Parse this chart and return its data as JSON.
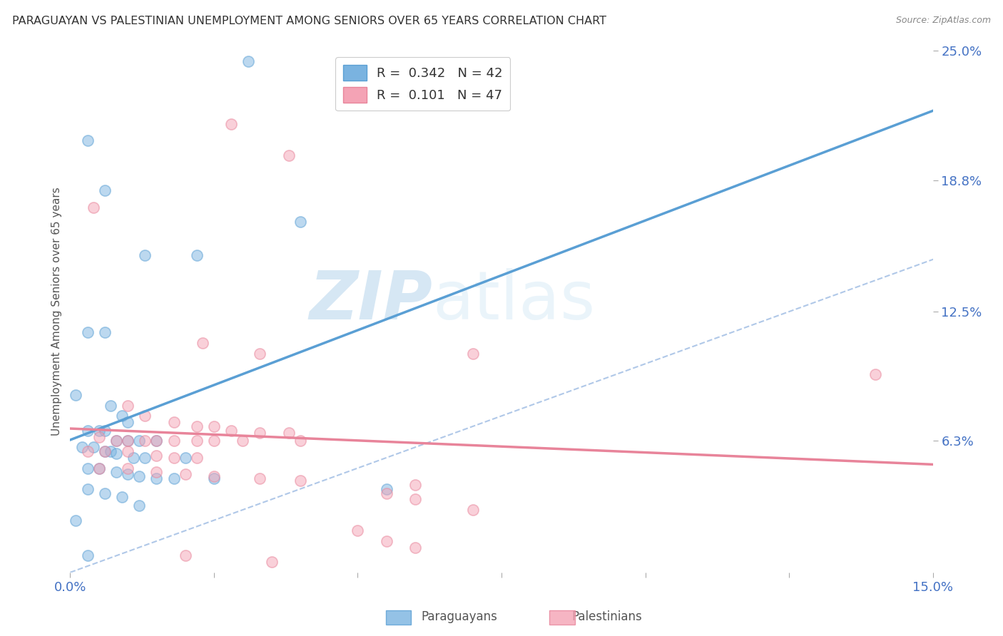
{
  "title": "PARAGUAYAN VS PALESTINIAN UNEMPLOYMENT AMONG SENIORS OVER 65 YEARS CORRELATION CHART",
  "source": "Source: ZipAtlas.com",
  "ylabel": "Unemployment Among Seniors over 65 years",
  "y_tick_labels_right": [
    "25.0%",
    "18.8%",
    "12.5%",
    "6.3%"
  ],
  "y_tick_values_right": [
    0.25,
    0.188,
    0.125,
    0.063
  ],
  "xlim": [
    0.0,
    0.15
  ],
  "ylim": [
    0.0,
    0.25
  ],
  "legend_label_par": "R =  0.342   N = 42",
  "legend_label_pal": "R =  0.101   N = 47",
  "watermark_zip": "ZIP",
  "watermark_atlas": "atlas",
  "paraguayan_color": "#7ab3e0",
  "paraguayan_color_dark": "#5a9fd4",
  "palestinian_color": "#f4a3b5",
  "palestinian_color_dark": "#e8849a",
  "trendline_paraguayan_color": "#5a9fd4",
  "trendline_palestinian_color": "#e8849a",
  "trendline_diagonal_color": "#b0c8e8",
  "paraguayan_points": [
    [
      0.003,
      0.207
    ],
    [
      0.022,
      0.152
    ],
    [
      0.031,
      0.245
    ],
    [
      0.006,
      0.183
    ],
    [
      0.013,
      0.152
    ],
    [
      0.04,
      0.168
    ],
    [
      0.003,
      0.115
    ],
    [
      0.006,
      0.115
    ],
    [
      0.001,
      0.085
    ],
    [
      0.007,
      0.08
    ],
    [
      0.009,
      0.075
    ],
    [
      0.01,
      0.072
    ],
    [
      0.003,
      0.068
    ],
    [
      0.005,
      0.068
    ],
    [
      0.006,
      0.068
    ],
    [
      0.008,
      0.063
    ],
    [
      0.01,
      0.063
    ],
    [
      0.012,
      0.063
    ],
    [
      0.015,
      0.063
    ],
    [
      0.002,
      0.06
    ],
    [
      0.004,
      0.06
    ],
    [
      0.006,
      0.058
    ],
    [
      0.007,
      0.058
    ],
    [
      0.008,
      0.057
    ],
    [
      0.011,
      0.055
    ],
    [
      0.013,
      0.055
    ],
    [
      0.02,
      0.055
    ],
    [
      0.003,
      0.05
    ],
    [
      0.005,
      0.05
    ],
    [
      0.008,
      0.048
    ],
    [
      0.01,
      0.047
    ],
    [
      0.012,
      0.046
    ],
    [
      0.015,
      0.045
    ],
    [
      0.018,
      0.045
    ],
    [
      0.025,
      0.045
    ],
    [
      0.003,
      0.04
    ],
    [
      0.006,
      0.038
    ],
    [
      0.009,
      0.036
    ],
    [
      0.012,
      0.032
    ],
    [
      0.001,
      0.025
    ],
    [
      0.055,
      0.04
    ],
    [
      0.003,
      0.008
    ]
  ],
  "palestinian_points": [
    [
      0.028,
      0.215
    ],
    [
      0.038,
      0.2
    ],
    [
      0.004,
      0.175
    ],
    [
      0.023,
      0.11
    ],
    [
      0.033,
      0.105
    ],
    [
      0.07,
      0.105
    ],
    [
      0.01,
      0.08
    ],
    [
      0.013,
      0.075
    ],
    [
      0.018,
      0.072
    ],
    [
      0.022,
      0.07
    ],
    [
      0.025,
      0.07
    ],
    [
      0.028,
      0.068
    ],
    [
      0.033,
      0.067
    ],
    [
      0.038,
      0.067
    ],
    [
      0.005,
      0.065
    ],
    [
      0.008,
      0.063
    ],
    [
      0.01,
      0.063
    ],
    [
      0.013,
      0.063
    ],
    [
      0.015,
      0.063
    ],
    [
      0.018,
      0.063
    ],
    [
      0.022,
      0.063
    ],
    [
      0.025,
      0.063
    ],
    [
      0.03,
      0.063
    ],
    [
      0.04,
      0.063
    ],
    [
      0.003,
      0.058
    ],
    [
      0.006,
      0.058
    ],
    [
      0.01,
      0.058
    ],
    [
      0.015,
      0.056
    ],
    [
      0.018,
      0.055
    ],
    [
      0.022,
      0.055
    ],
    [
      0.005,
      0.05
    ],
    [
      0.01,
      0.05
    ],
    [
      0.015,
      0.048
    ],
    [
      0.02,
      0.047
    ],
    [
      0.025,
      0.046
    ],
    [
      0.033,
      0.045
    ],
    [
      0.04,
      0.044
    ],
    [
      0.06,
      0.042
    ],
    [
      0.055,
      0.038
    ],
    [
      0.06,
      0.035
    ],
    [
      0.07,
      0.03
    ],
    [
      0.05,
      0.02
    ],
    [
      0.055,
      0.015
    ],
    [
      0.06,
      0.012
    ],
    [
      0.02,
      0.008
    ],
    [
      0.035,
      0.005
    ],
    [
      0.14,
      0.095
    ]
  ],
  "marker_size": 120,
  "marker_alpha": 0.5,
  "grid_color": "#dddddd",
  "background_color": "#ffffff"
}
